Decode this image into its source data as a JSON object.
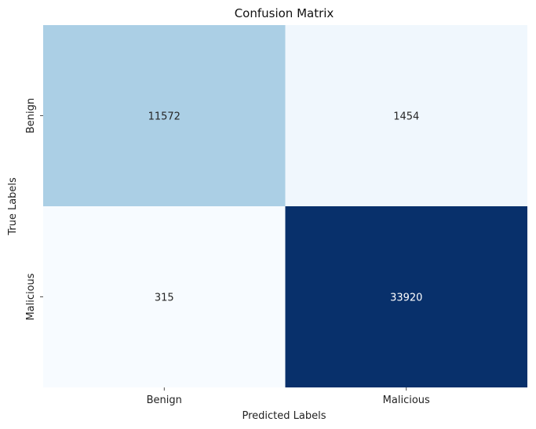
{
  "chart_data": {
    "type": "heatmap",
    "title": "Confusion Matrix",
    "xlabel": "Predicted Labels",
    "ylabel": "True Labels",
    "x_categories": [
      "Benign",
      "Malicious"
    ],
    "y_categories": [
      "Benign",
      "Malicious"
    ],
    "values": [
      [
        11572,
        1454
      ],
      [
        315,
        33920
      ]
    ],
    "colormap": "Blues",
    "colorbar": false,
    "grid": false
  }
}
